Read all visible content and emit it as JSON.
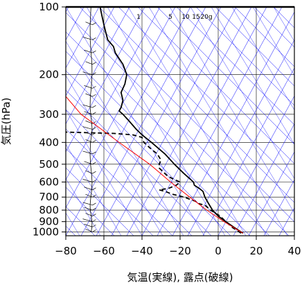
{
  "chart_data": {
    "type": "line",
    "xlabel": "気温(実線), 露点(破線)",
    "ylabel": "気圧(hPa)",
    "xlim": [
      -80,
      40
    ],
    "ylim": [
      1040,
      100
    ],
    "y_scale": "log",
    "x_ticks": [
      "−80",
      "−60",
      "−40",
      "−20",
      "0",
      "20",
      "40"
    ],
    "x_tick_values": [
      -80,
      -60,
      -40,
      -20,
      0,
      20,
      40
    ],
    "y_ticks": [
      "100",
      "200",
      "300",
      "400",
      "500",
      "600",
      "700",
      "800",
      "900",
      "1000"
    ],
    "y_tick_values": [
      100,
      200,
      300,
      400,
      500,
      600,
      700,
      800,
      900,
      1000
    ],
    "mixing_ratio_labels": [
      "1",
      "5",
      "10",
      "15",
      "20g"
    ],
    "series": [
      {
        "style": "solid",
        "color": "#000000",
        "points": [
          [
            1013,
            13
          ],
          [
            1000,
            12
          ],
          [
            950,
            8
          ],
          [
            900,
            4
          ],
          [
            850,
            0
          ],
          [
            800,
            -3
          ],
          [
            750,
            -5
          ],
          [
            700,
            -7
          ],
          [
            680,
            -7.5
          ],
          [
            660,
            -8
          ],
          [
            640,
            -10
          ],
          [
            620,
            -12.5
          ],
          [
            600,
            -13
          ],
          [
            550,
            -18
          ],
          [
            500,
            -23
          ],
          [
            450,
            -28
          ],
          [
            400,
            -35
          ],
          [
            370,
            -40
          ],
          [
            350,
            -43
          ],
          [
            320,
            -47
          ],
          [
            300,
            -50
          ],
          [
            290,
            -52
          ],
          [
            280,
            -51
          ],
          [
            260,
            -50
          ],
          [
            240,
            -51
          ],
          [
            220,
            -49
          ],
          [
            200,
            -48
          ],
          [
            180,
            -50
          ],
          [
            160,
            -54
          ],
          [
            150,
            -55
          ],
          [
            140,
            -58
          ],
          [
            130,
            -59
          ],
          [
            120,
            -60
          ],
          [
            110,
            -61
          ],
          [
            100,
            -62
          ]
        ]
      },
      {
        "style": "dashed",
        "color": "#000000",
        "points": [
          [
            1013,
            12
          ],
          [
            1000,
            11
          ],
          [
            950,
            7
          ],
          [
            900,
            4
          ],
          [
            850,
            1
          ],
          [
            800,
            -4
          ],
          [
            760,
            -7
          ],
          [
            750,
            -10
          ],
          [
            730,
            -12
          ],
          [
            700,
            -18
          ],
          [
            680,
            -24
          ],
          [
            660,
            -28
          ],
          [
            650,
            -31
          ],
          [
            640,
            -26
          ],
          [
            620,
            -22
          ],
          [
            600,
            -20
          ],
          [
            580,
            -24
          ],
          [
            560,
            -27
          ],
          [
            520,
            -31
          ],
          [
            500,
            -31
          ],
          [
            480,
            -30
          ],
          [
            450,
            -32
          ],
          [
            430,
            -35
          ],
          [
            400,
            -39
          ],
          [
            380,
            -40
          ],
          [
            370,
            -45
          ],
          [
            365,
            -55
          ],
          [
            360,
            -80
          ]
        ]
      },
      {
        "style": "solid",
        "color": "#ff0000",
        "points": [
          [
            1013,
            13
          ],
          [
            900,
            3
          ],
          [
            800,
            -6
          ],
          [
            700,
            -15
          ],
          [
            600,
            -25
          ],
          [
            500,
            -36
          ],
          [
            400,
            -52
          ],
          [
            300,
            -72
          ],
          [
            250,
            -80
          ]
        ]
      }
    ],
    "wind_profile_x": -66,
    "wind_profile_color": "#000000",
    "isotherm_color": "#0000ff",
    "dry_adiabat_color": "#0000ff",
    "grid": true
  }
}
